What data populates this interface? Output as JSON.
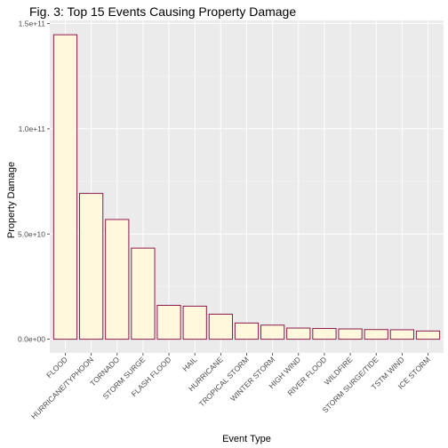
{
  "chart_data": {
    "type": "bar",
    "title": "Fig. 3: Top 15 Events Causing Property Damage",
    "xlabel": "Event Type",
    "ylabel": "Property Damage",
    "categories": [
      "FLOOD",
      "HURRICANE/TYPHOON",
      "TORNADO",
      "STORM SURGE",
      "FLASH FLOOD",
      "HAIL",
      "HURRICANE",
      "TROPICAL STORM",
      "WINTER STORM",
      "HIGH WIND",
      "RIVER FLOOD",
      "WILDFIRE",
      "STORM SURGE/TIDE",
      "TSTM WIND",
      "ICE STORM"
    ],
    "values": [
      144700000000,
      69300000000,
      56900000000,
      43300000000,
      16100000000,
      15700000000,
      11900000000,
      7700000000,
      6700000000,
      5300000000,
      5100000000,
      4900000000,
      4600000000,
      4500000000,
      3900000000
    ],
    "ylim": [
      -6500000000,
      151500000000
    ],
    "yticks": [
      0,
      50000000000,
      100000000000,
      150000000000
    ],
    "ytick_labels": [
      "0.0e+00",
      "5.0e+10",
      "1.0e+11",
      "1.5e+11"
    ],
    "grid": true,
    "colors": {
      "bar_fill": "#fff8dc",
      "bar_stroke": "#8b1a4a",
      "panel": "#ebebeb"
    }
  }
}
